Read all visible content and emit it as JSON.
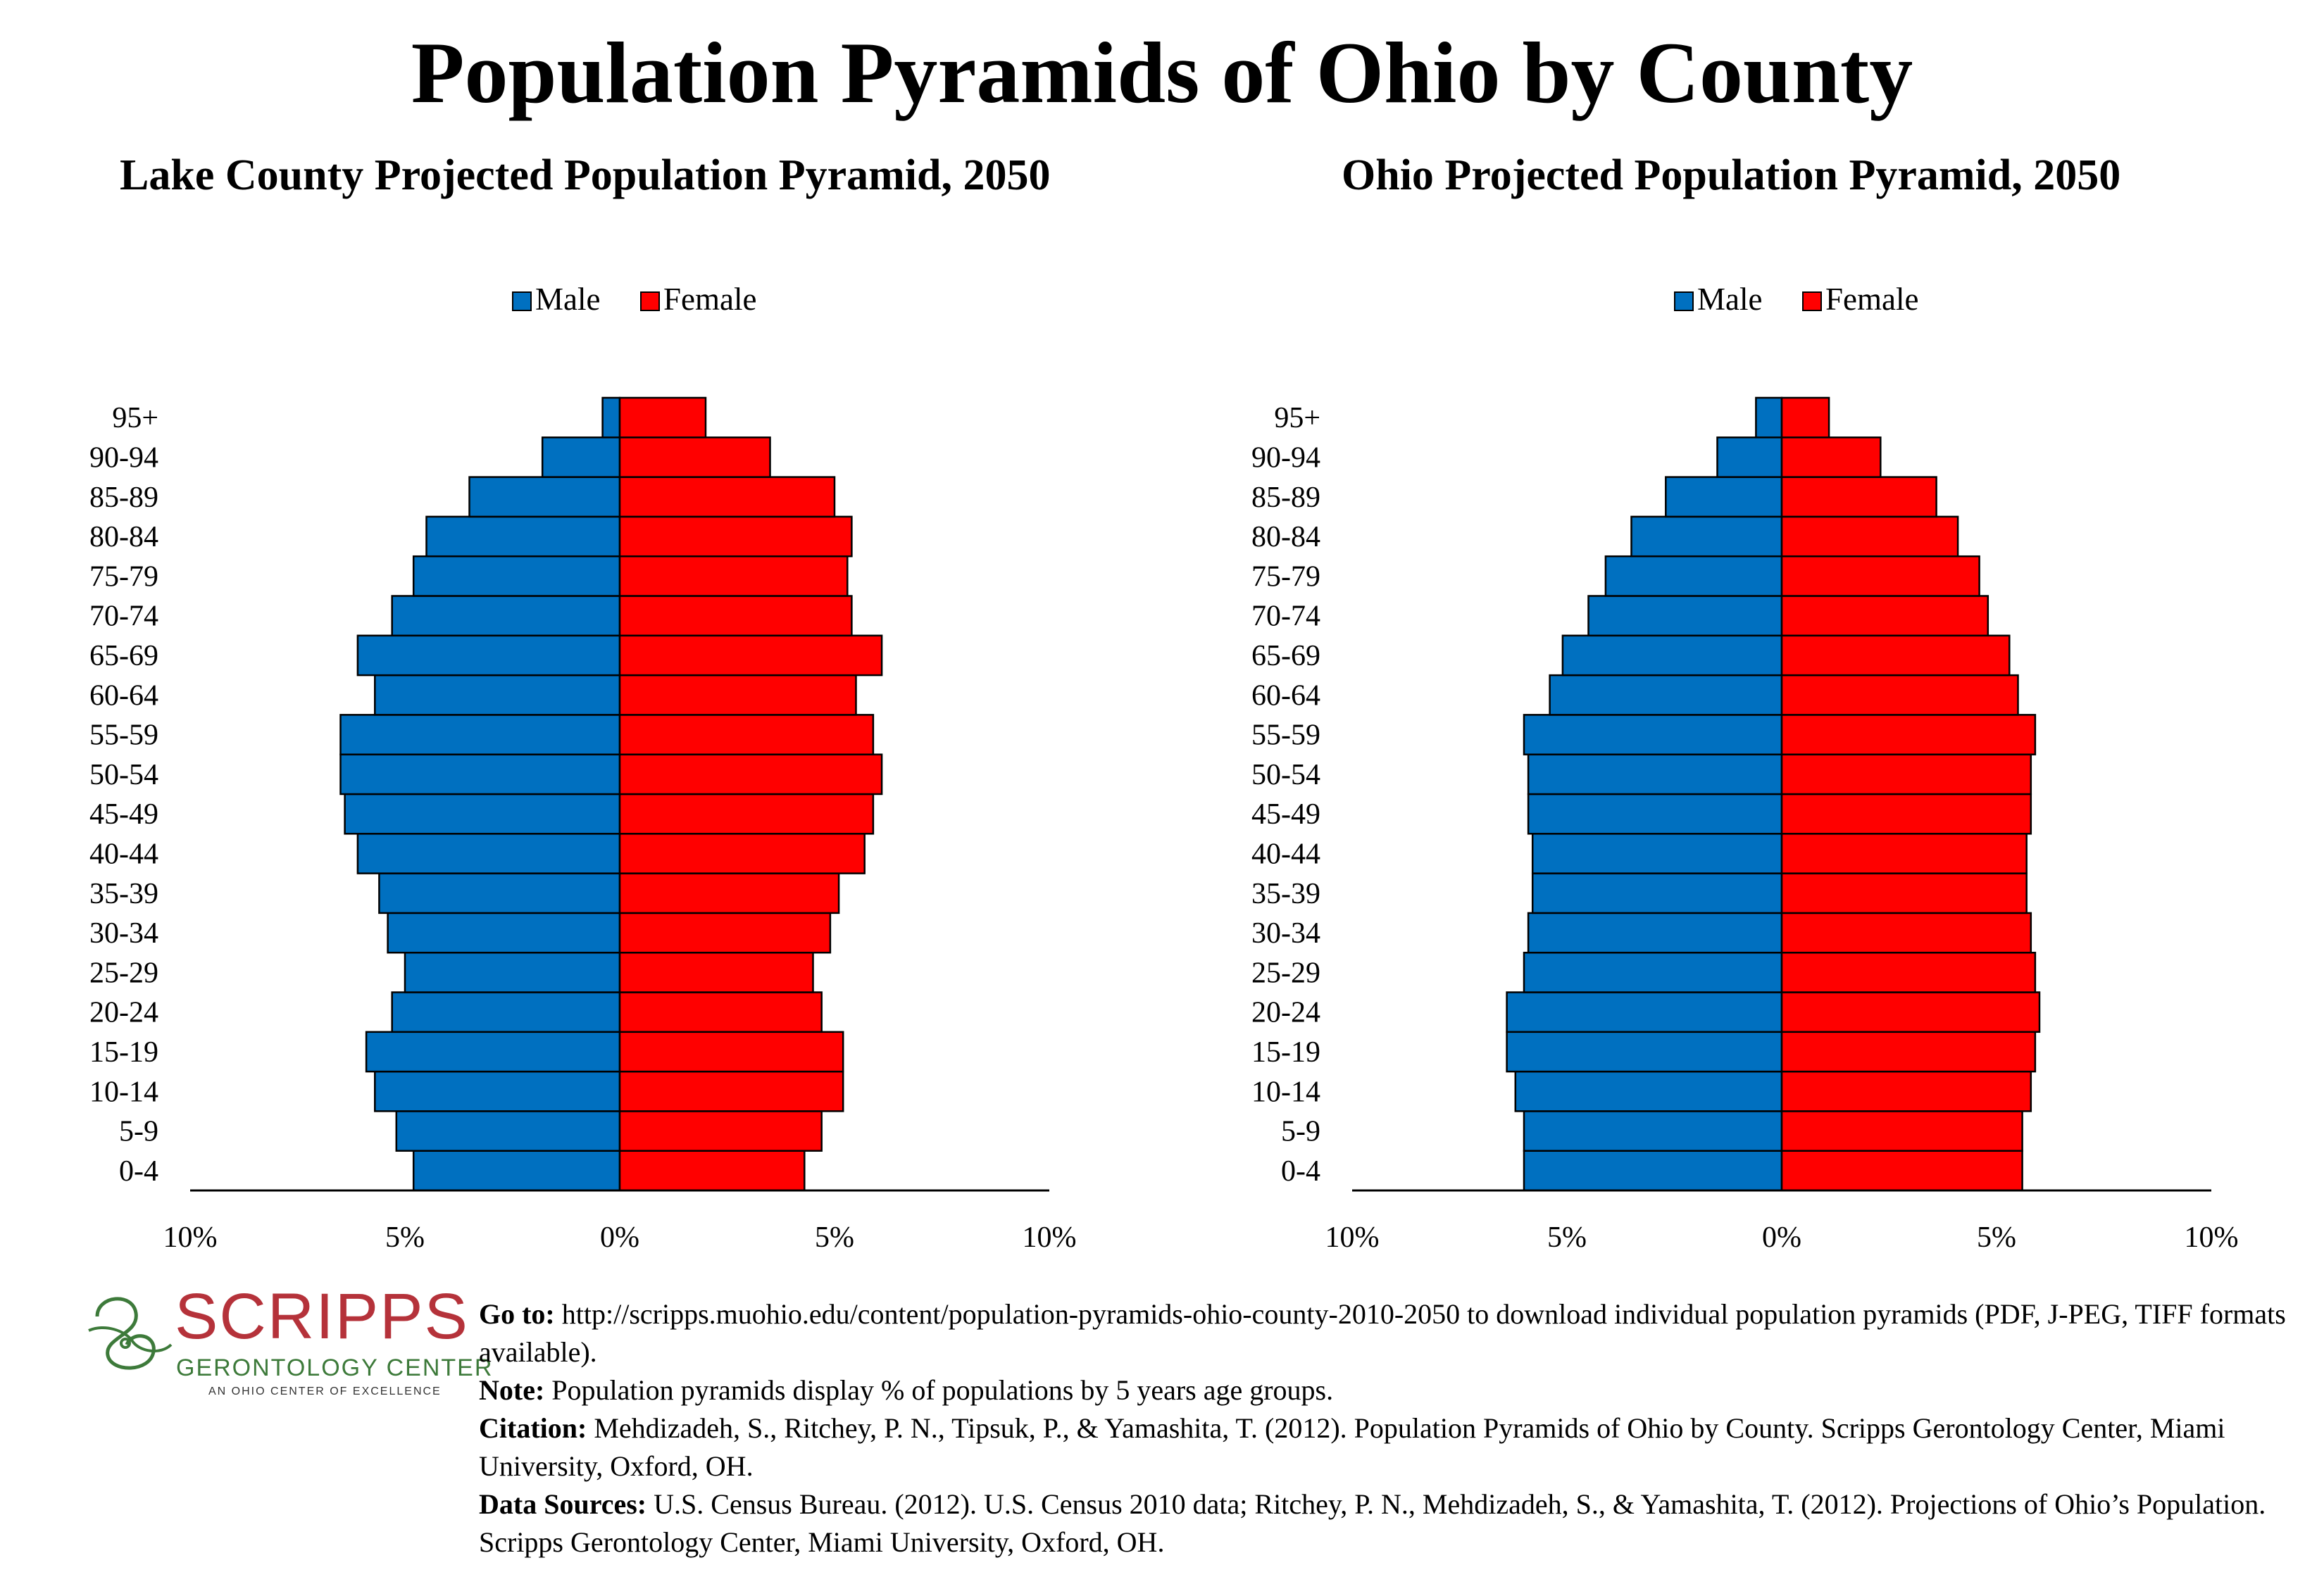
{
  "page": {
    "title": "Population Pyramids of Ohio by County"
  },
  "colors": {
    "male": "#0070c0",
    "female": "#ff0000",
    "axis": "#000000"
  },
  "chart_data": [
    {
      "type": "bar",
      "title": "Lake County Projected Population Pyramid, 2050",
      "legend": [
        "Male",
        "Female"
      ],
      "legend_position": "top-center",
      "categories": [
        "0-4",
        "5-9",
        "10-14",
        "15-19",
        "20-24",
        "25-29",
        "30-34",
        "35-39",
        "40-44",
        "45-49",
        "50-54",
        "55-59",
        "60-64",
        "65-69",
        "70-74",
        "75-79",
        "80-84",
        "85-89",
        "90-94",
        "95+"
      ],
      "series": [
        {
          "name": "Male",
          "values": [
            4.8,
            5.2,
            5.7,
            5.9,
            5.3,
            5.0,
            5.4,
            5.6,
            6.1,
            6.4,
            6.5,
            6.5,
            5.7,
            6.1,
            5.3,
            4.8,
            4.5,
            3.5,
            1.8,
            0.4
          ]
        },
        {
          "name": "Female",
          "values": [
            4.3,
            4.7,
            5.2,
            5.2,
            4.7,
            4.5,
            4.9,
            5.1,
            5.7,
            5.9,
            6.1,
            5.9,
            5.5,
            6.1,
            5.4,
            5.3,
            5.4,
            5.0,
            3.5,
            2.0
          ]
        }
      ],
      "x_ticks": [
        "10%",
        "5%",
        "0%",
        "5%",
        "10%"
      ],
      "xlim": [
        -10,
        10
      ],
      "grid": false
    },
    {
      "type": "bar",
      "title": "Ohio Projected Population Pyramid, 2050",
      "legend": [
        "Male",
        "Female"
      ],
      "legend_position": "top-center",
      "categories": [
        "0-4",
        "5-9",
        "10-14",
        "15-19",
        "20-24",
        "25-29",
        "30-34",
        "35-39",
        "40-44",
        "45-49",
        "50-54",
        "55-59",
        "60-64",
        "65-69",
        "70-74",
        "75-79",
        "80-84",
        "85-89",
        "90-94",
        "95+"
      ],
      "series": [
        {
          "name": "Male",
          "values": [
            6.0,
            6.0,
            6.2,
            6.4,
            6.4,
            6.0,
            5.9,
            5.8,
            5.8,
            5.9,
            5.9,
            6.0,
            5.4,
            5.1,
            4.5,
            4.1,
            3.5,
            2.7,
            1.5,
            0.6
          ]
        },
        {
          "name": "Female",
          "values": [
            5.6,
            5.6,
            5.8,
            5.9,
            6.0,
            5.9,
            5.8,
            5.7,
            5.7,
            5.8,
            5.8,
            5.9,
            5.5,
            5.3,
            4.8,
            4.6,
            4.1,
            3.6,
            2.3,
            1.1
          ]
        }
      ],
      "x_ticks": [
        "10%",
        "5%",
        "0%",
        "5%",
        "10%"
      ],
      "xlim": [
        -10,
        10
      ],
      "grid": false
    }
  ],
  "logo": {
    "word": "SCRIPPS",
    "subtitle": "GERONTOLOGY CENTER",
    "tagline": "AN OHIO CENTER OF EXCELLENCE"
  },
  "notes": {
    "goto_label": "Go to:",
    "goto_text": " http://scripps.muohio.edu/content/population-pyramids-ohio-county-2010-2050 to download individual population pyramids (PDF, J-PEG, TIFF formats available).",
    "note_label": "Note:",
    "note_text": " Population pyramids display % of populations by 5 years age groups.",
    "citation_label": "Citation:",
    "citation_text": " Mehdizadeh, S., Ritchey, P. N., Tipsuk, P., & Yamashita, T. (2012). Population Pyramids of Ohio by County. Scripps Gerontology Center, Miami University, Oxford, OH.",
    "sources_label": "Data Sources:",
    "sources_text": " U.S. Census Bureau. (2012). U.S. Census 2010 data; Ritchey, P. N., Mehdizadeh, S., & Yamashita, T. (2012). Projections of Ohio’s Population. Scripps Gerontology Center, Miami University, Oxford, OH."
  }
}
